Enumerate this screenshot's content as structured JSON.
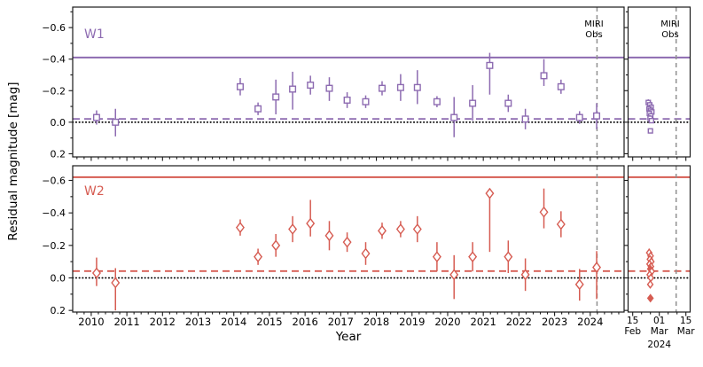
{
  "figure": {
    "background": "#ffffff",
    "frame_color": "#1a1a1a",
    "vline_color": "#909090",
    "zero_line_color": "#000000"
  },
  "chart_data": {
    "type": "scatter",
    "xlabel": "Year",
    "ylabel": "Residual magnitude [mag]",
    "y_axis_inverted": true,
    "annotation": {
      "line1": "MIRI",
      "line2": "Obs"
    },
    "x_axis": {
      "xlim": [
        2009.48,
        2024.95
      ],
      "major_ticks": [
        2010,
        2011,
        2012,
        2013,
        2014,
        2015,
        2016,
        2017,
        2018,
        2019,
        2020,
        2021,
        2022,
        2023,
        2024
      ],
      "tick_labels": [
        "2010",
        "2011",
        "2012",
        "2013",
        "2014",
        "2015",
        "2016",
        "2017",
        "2018",
        "2019",
        "2020",
        "2021",
        "2022",
        "2023",
        "2024"
      ],
      "minor_step": 0.2,
      "vline_year": 2024.19
    },
    "zoom_axis": {
      "xlim_days": [
        -2.6,
        32.4
      ],
      "major_ticks": [
        0,
        15,
        30
      ],
      "tick_labels": [
        [
          "15",
          "Feb"
        ],
        [
          "01",
          "Mar"
        ],
        [
          "15",
          "Mar"
        ]
      ],
      "year_label": "2024",
      "year_label_tick": 15,
      "minor_step": 5,
      "vline_day": 24.5
    },
    "y_axis": {
      "major_ticks": [
        -0.6,
        -0.4,
        -0.2,
        0.0,
        0.2
      ],
      "tick_labels": [
        "−0.6",
        "−0.4",
        "−0.2",
        "0.0",
        "0.2"
      ],
      "minor_step": 0.1
    },
    "bands": [
      {
        "name": "W1",
        "color": "#8d6bb1",
        "marker": "square",
        "ylim": [
          -0.73,
          0.22
        ],
        "lines": {
          "solid": -0.41,
          "dashed": -0.021,
          "dotted": 0.0
        },
        "points": [
          [
            2010.15,
            -0.03,
            0.045,
            0.045
          ],
          [
            2010.68,
            0.0,
            0.085,
            0.09
          ],
          [
            2014.18,
            -0.225,
            0.055,
            0.055
          ],
          [
            2014.68,
            -0.085,
            0.04,
            0.04
          ],
          [
            2015.18,
            -0.16,
            0.11,
            0.11
          ],
          [
            2015.65,
            -0.21,
            0.11,
            0.13
          ],
          [
            2016.15,
            -0.235,
            0.06,
            0.06
          ],
          [
            2016.68,
            -0.215,
            0.07,
            0.08
          ],
          [
            2017.18,
            -0.14,
            0.05,
            0.05
          ],
          [
            2017.7,
            -0.13,
            0.04,
            0.04
          ],
          [
            2018.16,
            -0.215,
            0.045,
            0.045
          ],
          [
            2018.68,
            -0.22,
            0.085,
            0.085
          ],
          [
            2019.15,
            -0.22,
            0.11,
            0.105
          ],
          [
            2019.7,
            -0.13,
            0.035,
            0.035
          ],
          [
            2020.18,
            -0.03,
            0.13,
            0.125
          ],
          [
            2020.7,
            -0.12,
            0.115,
            0.11
          ],
          [
            2021.18,
            -0.36,
            0.08,
            0.185
          ],
          [
            2021.7,
            -0.12,
            0.055,
            0.055
          ],
          [
            2022.18,
            -0.02,
            0.065,
            0.065
          ],
          [
            2022.7,
            -0.295,
            0.105,
            0.065
          ],
          [
            2023.18,
            -0.225,
            0.045,
            0.045
          ],
          [
            2023.7,
            -0.03,
            0.04,
            0.04
          ],
          [
            2024.18,
            -0.04,
            0.08,
            0.085
          ]
        ],
        "zoom_points": [
          [
            8.8,
            -0.125,
            0.02,
            0.02,
            0
          ],
          [
            9.6,
            -0.11,
            0.02,
            0.02,
            0
          ],
          [
            10.4,
            -0.095,
            0.02,
            0.02,
            0
          ],
          [
            9.2,
            -0.085,
            0.02,
            0.02,
            0
          ],
          [
            10.0,
            -0.075,
            0.02,
            0.02,
            0
          ],
          [
            10.8,
            -0.065,
            0.02,
            0.02,
            0
          ],
          [
            9.4,
            -0.055,
            0.02,
            0.02,
            0
          ],
          [
            10.2,
            -0.04,
            0.02,
            0.02,
            0
          ],
          [
            9.8,
            -0.025,
            0.02,
            0.02,
            0
          ],
          [
            10.6,
            -0.01,
            0.015,
            0.015,
            0
          ],
          [
            10.0,
            0.055,
            0.015,
            0.015,
            0
          ]
        ]
      },
      {
        "name": "W2",
        "color": "#d65c52",
        "marker": "diamond",
        "ylim": [
          -0.69,
          0.21
        ],
        "lines": {
          "solid": -0.62,
          "dashed": -0.042,
          "dotted": 0.0
        },
        "points": [
          [
            2010.15,
            -0.03,
            0.095,
            0.08
          ],
          [
            2010.68,
            0.03,
            0.09,
            0.17
          ],
          [
            2014.18,
            -0.31,
            0.05,
            0.05
          ],
          [
            2014.68,
            -0.13,
            0.05,
            0.05
          ],
          [
            2015.18,
            -0.2,
            0.07,
            0.07
          ],
          [
            2015.65,
            -0.3,
            0.08,
            0.08
          ],
          [
            2016.15,
            -0.335,
            0.145,
            0.08
          ],
          [
            2016.68,
            -0.26,
            0.09,
            0.09
          ],
          [
            2017.18,
            -0.22,
            0.06,
            0.06
          ],
          [
            2017.7,
            -0.15,
            0.07,
            0.07
          ],
          [
            2018.16,
            -0.29,
            0.05,
            0.05
          ],
          [
            2018.68,
            -0.3,
            0.05,
            0.05
          ],
          [
            2019.15,
            -0.3,
            0.08,
            0.08
          ],
          [
            2019.7,
            -0.13,
            0.09,
            0.09
          ],
          [
            2020.18,
            -0.02,
            0.12,
            0.15
          ],
          [
            2020.7,
            -0.13,
            0.09,
            0.09
          ],
          [
            2021.18,
            -0.52,
            0.03,
            0.36
          ],
          [
            2021.7,
            -0.13,
            0.1,
            0.1
          ],
          [
            2022.18,
            -0.02,
            0.1,
            0.1
          ],
          [
            2022.7,
            -0.405,
            0.145,
            0.1
          ],
          [
            2023.18,
            -0.33,
            0.08,
            0.08
          ],
          [
            2023.7,
            0.04,
            0.095,
            0.1
          ],
          [
            2024.18,
            -0.065,
            0.1,
            0.195
          ]
        ],
        "zoom_points": [
          [
            9.3,
            -0.155,
            0.025,
            0.025,
            0
          ],
          [
            10.1,
            -0.135,
            0.02,
            0.02,
            0
          ],
          [
            9.7,
            -0.115,
            0.02,
            0.02,
            0
          ],
          [
            10.5,
            -0.1,
            0.02,
            0.02,
            0
          ],
          [
            9.5,
            -0.085,
            0.02,
            0.02,
            0
          ],
          [
            10.3,
            -0.07,
            0.02,
            0.02,
            0
          ],
          [
            9.9,
            -0.055,
            0.02,
            0.02,
            1
          ],
          [
            10.7,
            -0.04,
            0.02,
            0.02,
            0
          ],
          [
            9.6,
            -0.02,
            0.02,
            0.02,
            0
          ],
          [
            10.2,
            0.0,
            0.02,
            0.02,
            0
          ],
          [
            9.9,
            0.04,
            0.02,
            0.02,
            0
          ],
          [
            10.0,
            0.125,
            0.02,
            0.02,
            1
          ]
        ]
      }
    ]
  }
}
